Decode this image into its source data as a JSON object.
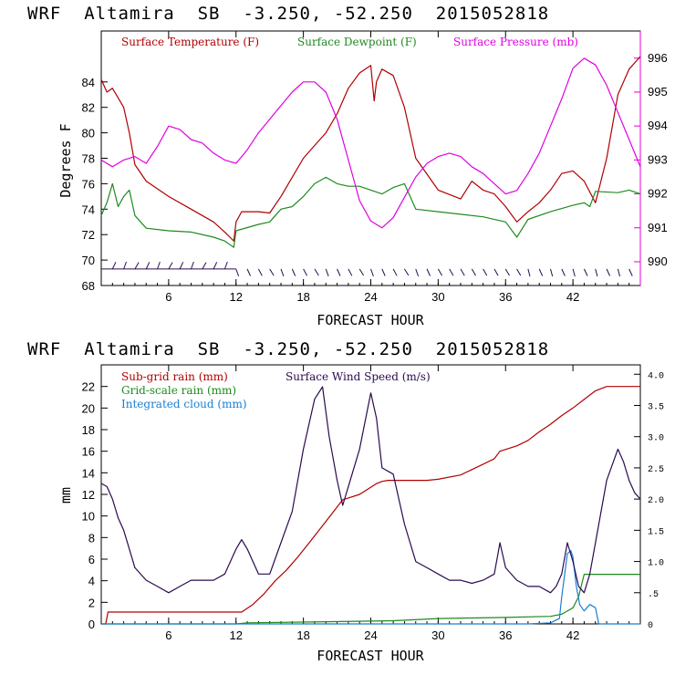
{
  "colors": {
    "temperature": "#b00000",
    "dewpoint": "#1e8a1e",
    "pressure": "#e000e0",
    "wind": "#2a0a50",
    "subgrid_rain": "#b00000",
    "gridscale_rain": "#1e8a1e",
    "cloud": "#1a7fd0"
  },
  "chart_data": [
    {
      "type": "line",
      "header": "WRF  Altamira  SB  -3.250, -52.250  2015052818",
      "xlabel": "FORECAST HOUR",
      "ylabel": "Degrees F",
      "xlim": [
        0,
        48
      ],
      "ylim": [
        68,
        88
      ],
      "y2lim": [
        989.3,
        996.8
      ],
      "xticks": [
        6,
        12,
        18,
        24,
        30,
        36,
        42
      ],
      "yticks": [
        68,
        70,
        72,
        74,
        76,
        78,
        80,
        82,
        84
      ],
      "y2ticks": [
        990,
        991,
        992,
        993,
        994,
        995,
        996
      ],
      "legend": [
        "Surface Temperature (F)",
        "Surface Dewpoint (F)",
        "Surface Pressure (mb)"
      ],
      "series": [
        {
          "name": "Surface Temperature (F)",
          "axis": "left",
          "x": [
            0,
            0.5,
            1,
            2,
            2.5,
            3,
            4,
            6,
            8,
            10,
            11,
            11.8,
            12,
            12.5,
            14,
            15,
            16,
            17,
            18,
            19,
            20,
            21,
            22,
            23,
            24,
            24.3,
            24.5,
            25,
            26,
            27,
            28,
            30,
            32,
            33,
            34,
            35,
            36,
            37,
            38,
            39,
            40,
            41,
            42,
            43,
            44,
            45,
            46,
            47,
            48
          ],
          "values": [
            84.2,
            83.2,
            83.5,
            82,
            80,
            77.5,
            76.2,
            75,
            74,
            73,
            72.2,
            71.5,
            73,
            73.8,
            73.8,
            73.7,
            75,
            76.5,
            78,
            79,
            80,
            81.5,
            83.5,
            84.7,
            85.3,
            82.5,
            84,
            85,
            84.5,
            82,
            78,
            75.5,
            74.8,
            76.2,
            75.5,
            75.2,
            74.2,
            73,
            73.8,
            74.5,
            75.5,
            76.8,
            77,
            76.2,
            74.5,
            78,
            83,
            85,
            86
          ]
        },
        {
          "name": "Surface Dewpoint (F)",
          "axis": "left",
          "x": [
            0,
            0.5,
            1,
            1.5,
            2,
            2.5,
            3,
            4,
            6,
            8,
            10,
            11,
            11.8,
            12,
            14,
            15,
            16,
            17,
            18,
            19,
            20,
            21,
            22,
            23,
            24,
            25,
            26,
            27,
            28,
            30,
            32,
            34,
            36,
            37,
            38,
            40,
            42,
            43,
            43.5,
            44,
            46,
            47,
            48
          ],
          "values": [
            73.5,
            74.5,
            76,
            74.2,
            75,
            75.5,
            73.5,
            72.5,
            72.3,
            72.2,
            71.8,
            71.5,
            71,
            72.3,
            72.8,
            73,
            74,
            74.2,
            75,
            76,
            76.5,
            76,
            75.8,
            75.8,
            75.5,
            75.2,
            75.7,
            76,
            74,
            73.8,
            73.6,
            73.4,
            73,
            71.8,
            73.2,
            73.8,
            74.3,
            74.5,
            74.2,
            75.4,
            75.3,
            75.5,
            75.2
          ]
        },
        {
          "name": "Surface Pressure (mb)",
          "axis": "right",
          "x": [
            0,
            1,
            2,
            3,
            4,
            5,
            6,
            7,
            8,
            9,
            10,
            11,
            12,
            13,
            14,
            15,
            16,
            17,
            18,
            19,
            20,
            21,
            22,
            23,
            24,
            25,
            26,
            27,
            28,
            29,
            30,
            31,
            32,
            33,
            34,
            35,
            36,
            37,
            38,
            39,
            40,
            41,
            42,
            43,
            44,
            45,
            46,
            47,
            48
          ],
          "values": [
            993,
            992.8,
            993,
            993.1,
            992.9,
            993.4,
            994,
            993.9,
            993.6,
            993.5,
            993.2,
            993,
            992.9,
            993.3,
            993.8,
            994.2,
            994.6,
            995,
            995.3,
            995.3,
            995,
            994.2,
            993,
            991.8,
            991.2,
            991,
            991.3,
            991.9,
            992.5,
            992.9,
            993.1,
            993.2,
            993.1,
            992.8,
            992.6,
            992.3,
            992,
            992.1,
            992.6,
            993.2,
            994,
            994.8,
            995.7,
            996,
            995.8,
            995.2,
            994.4,
            993.6,
            992.8
          ]
        }
      ],
      "wind_barbs_row": 69.3
    },
    {
      "type": "line",
      "header": "WRF  Altamira  SB  -3.250, -52.250  2015052818",
      "xlabel": "FORECAST HOUR",
      "ylabel": "mm",
      "xlim": [
        0,
        48
      ],
      "ylim": [
        0,
        24
      ],
      "y2lim": [
        0,
        4.15
      ],
      "xticks": [
        6,
        12,
        18,
        24,
        30,
        36,
        42
      ],
      "yticks": [
        0,
        2,
        4,
        6,
        8,
        10,
        12,
        14,
        16,
        18,
        20,
        22
      ],
      "y2ticks": [
        0,
        0.5,
        1,
        1.5,
        2,
        2.5,
        3,
        3.5,
        4
      ],
      "y2ticklabels": [
        "0",
        ".5",
        "1.0",
        "1.5",
        "2.0",
        "2.5",
        "3.0",
        "3.5",
        "4.0"
      ],
      "legend": [
        "Sub-grid rain (mm)",
        "Surface Wind Speed (m/s)",
        "Grid-scale rain (mm)",
        "Integrated cloud (mm)"
      ],
      "series": [
        {
          "name": "Sub-grid rain (mm)",
          "axis": "left",
          "x": [
            0,
            0.4,
            0.6,
            12.5,
            13.5,
            14.5,
            15.5,
            16.5,
            17.5,
            18.5,
            20,
            21.5,
            23,
            24.5,
            25,
            25.5,
            27,
            29,
            30,
            32,
            33,
            34,
            35,
            35.5,
            37,
            38,
            39,
            40,
            41,
            42,
            43,
            44,
            45,
            48
          ],
          "values": [
            0,
            0,
            1.1,
            1.1,
            1.8,
            2.8,
            4,
            5,
            6.2,
            7.5,
            9.5,
            11.5,
            12,
            13,
            13.2,
            13.3,
            13.3,
            13.3,
            13.4,
            13.8,
            14.3,
            14.8,
            15.3,
            16,
            16.5,
            17,
            17.8,
            18.5,
            19.3,
            20,
            20.8,
            21.6,
            22,
            22
          ]
        },
        {
          "name": "Grid-scale rain (mm)",
          "axis": "left",
          "x": [
            0,
            12,
            13,
            20,
            26,
            30,
            36,
            40,
            41,
            42,
            42.5,
            43,
            44,
            48
          ],
          "values": [
            0,
            0,
            0.1,
            0.2,
            0.3,
            0.5,
            0.6,
            0.7,
            0.9,
            1.5,
            2.5,
            4.6,
            4.6,
            4.6
          ]
        },
        {
          "name": "Integrated cloud (mm)",
          "axis": "left",
          "x": [
            0,
            38,
            40,
            40.8,
            41,
            41.5,
            41.8,
            42,
            42.3,
            42.6,
            43,
            43.5,
            44,
            44.3,
            48
          ],
          "values": [
            0,
            0,
            0.1,
            0.5,
            2.5,
            6.5,
            6.8,
            6.2,
            3.5,
            1.8,
            1.2,
            1.8,
            1.5,
            0,
            0
          ]
        },
        {
          "name": "Surface Wind Speed (m/s)",
          "axis": "right",
          "x": [
            0,
            0.5,
            1,
            1.5,
            2,
            2.5,
            3,
            4,
            5,
            6,
            7,
            8,
            9,
            10,
            11,
            12,
            12.5,
            13,
            14,
            15,
            16,
            17,
            18,
            19,
            19.7,
            20.3,
            21,
            21.5,
            22,
            23,
            24,
            24.5,
            25,
            26,
            27,
            28,
            29,
            30,
            31,
            32,
            33,
            34,
            35,
            35.5,
            36,
            37,
            38,
            39,
            40,
            40.5,
            41,
            41.5,
            42,
            42.5,
            43,
            43.5,
            44,
            45,
            46,
            46.5,
            47,
            47.5,
            48
          ],
          "values": [
            2.25,
            2.2,
            2.0,
            1.7,
            1.5,
            1.2,
            0.9,
            0.7,
            0.6,
            0.5,
            0.6,
            0.7,
            0.7,
            0.7,
            0.8,
            1.2,
            1.35,
            1.2,
            0.8,
            0.8,
            1.3,
            1.8,
            2.8,
            3.6,
            3.8,
            3.0,
            2.3,
            1.9,
            2.2,
            2.8,
            3.7,
            3.3,
            2.5,
            2.4,
            1.6,
            1.0,
            0.9,
            0.8,
            0.7,
            0.7,
            0.65,
            0.7,
            0.8,
            1.3,
            0.9,
            0.7,
            0.6,
            0.6,
            0.5,
            0.6,
            0.8,
            1.3,
            1.0,
            0.6,
            0.5,
            0.8,
            1.3,
            2.3,
            2.8,
            2.6,
            2.3,
            2.1,
            2.0
          ]
        }
      ]
    }
  ]
}
